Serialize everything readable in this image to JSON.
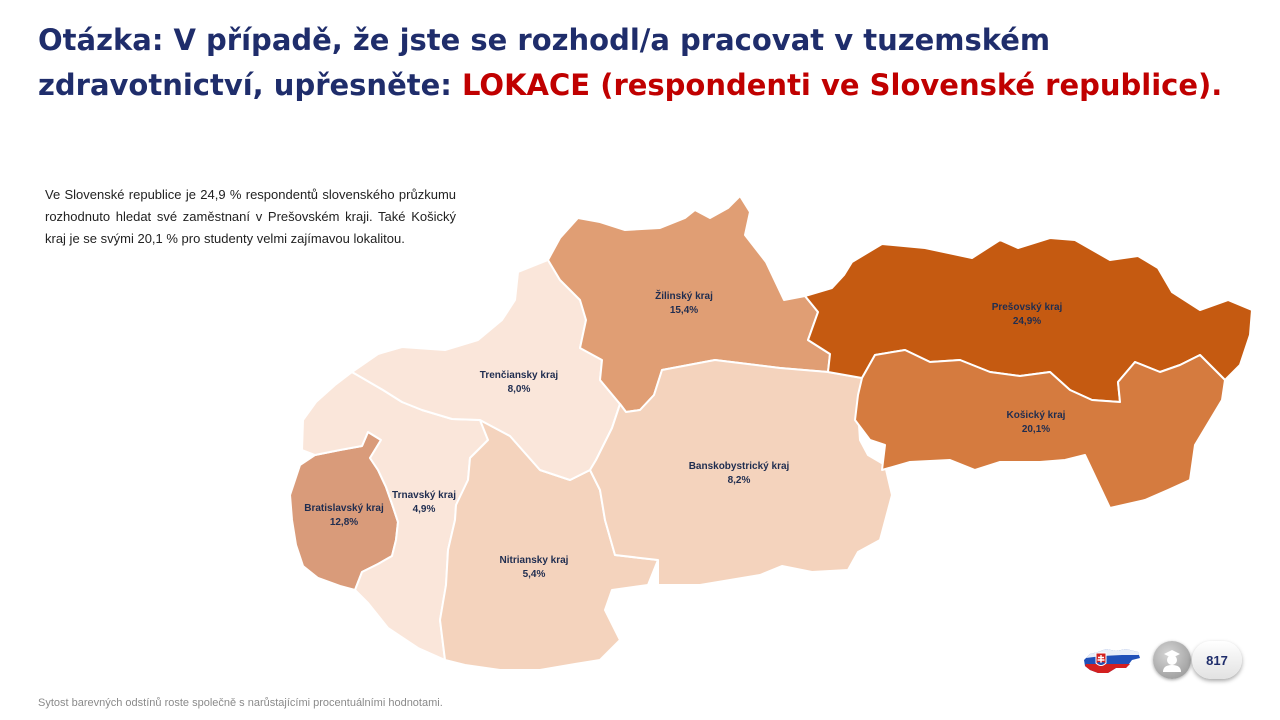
{
  "title": {
    "prefix": "Otázka: V případě, že jste se rozhodl/a pracovat v tuzemském zdravotnictví, upřesněte: ",
    "highlight": "LOKACE (respondenti ve Slovenské republice)."
  },
  "description": "Ve Slovenské republice je 24,9 % respondentů slovenského průzkumu rozhodnuto hledat své zaměstnaní v Prešovském kraji. Také Košický kraj je se svými 20,1 % pro studenty velmi zajímavou lokalitou.",
  "regions": [
    {
      "name": "Bratislavský kraj",
      "value": "12,8%",
      "color": "#d99b7a"
    },
    {
      "name": "Trnavský kraj",
      "value": "4,9%",
      "color": "#fae6da"
    },
    {
      "name": "Trenčiansky kraj",
      "value": "8,0%",
      "color": "#f4d3bd"
    },
    {
      "name": "Nitriansky kraj",
      "value": "5,4%",
      "color": "#fae6da"
    },
    {
      "name": "Žilinský kraj",
      "value": "15,4%",
      "color": "#e09e74"
    },
    {
      "name": "Banskobystrický kraj",
      "value": "8,2%",
      "color": "#f4d3bd"
    },
    {
      "name": "Prešovský kraj",
      "value": "24,9%",
      "color": "#c55a11"
    },
    {
      "name": "Košický kraj",
      "value": "20,1%",
      "color": "#d57b3f"
    }
  ],
  "footnote": "Sytost barevných odstínů roste společně s narůstajícími procentuálními hodnotami.",
  "respondents": {
    "count": "817",
    "icon": "student-icon",
    "flag_icon": "slovakia-flag-map-icon"
  }
}
